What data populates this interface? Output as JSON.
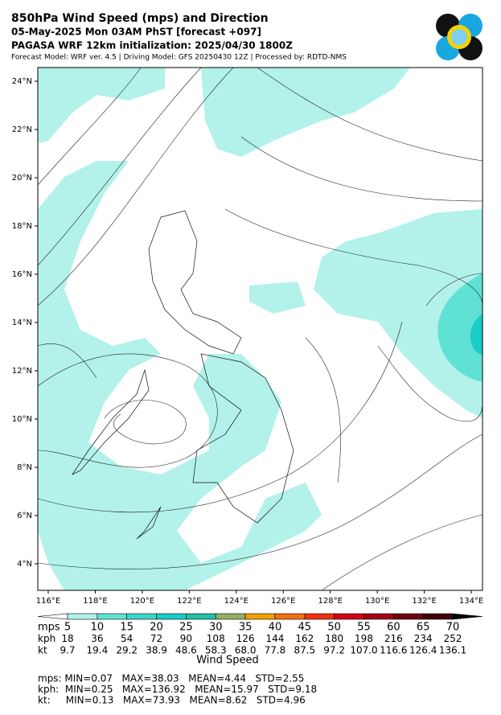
{
  "header": {
    "title": "850hPa Wind Speed (mps) and Direction",
    "subtitle": "05-May-2025 Mon 03AM PhST [forecast +097]",
    "init": "PAGASA WRF 12km initialization: 2025/04/30 1800Z",
    "credits": "Forecast Model: WRF ver. 4.5 | Driving Model: GFS 20250430 12Z | Processed by: RDTD-NMS"
  },
  "map": {
    "lat_labels": [
      "24°N",
      "22°N",
      "20°N",
      "18°N",
      "16°N",
      "14°N",
      "12°N",
      "10°N",
      "8°N",
      "6°N",
      "4°N"
    ],
    "lon_labels": [
      "116°E",
      "118°E",
      "120°E",
      "122°E",
      "124°E",
      "126°E",
      "128°E",
      "130°E",
      "132°E",
      "134°E"
    ]
  },
  "colorbar": {
    "colors": [
      "#ffffff",
      "#b2f2ea",
      "#5fe2d3",
      "#3bd8c9",
      "#1acdc8",
      "#21bfa7",
      "#93b062",
      "#f2a102",
      "#f27012",
      "#f03010",
      "#d00312",
      "#a20313",
      "#700610",
      "#400308",
      "#000000"
    ],
    "rows": [
      {
        "unit": "mps",
        "values": [
          "5",
          "10",
          "15",
          "20",
          "25",
          "30",
          "35",
          "40",
          "45",
          "50",
          "55",
          "60",
          "65",
          "70"
        ]
      },
      {
        "unit": "kph",
        "values": [
          "18",
          "36",
          "54",
          "72",
          "90",
          "108",
          "126",
          "144",
          "162",
          "180",
          "198",
          "216",
          "234",
          "252"
        ]
      },
      {
        "unit": "kt",
        "values": [
          "9.7",
          "19.4",
          "29.2",
          "38.9",
          "48.6",
          "58.3",
          "68.0",
          "77.8",
          "87.5",
          "97.2",
          "107.0",
          "116.6",
          "126.4",
          "136.1"
        ]
      }
    ],
    "label": "Wind Speed"
  },
  "stats": [
    "mps: MIN=0.07   MAX=38.03   MEAN=4.44   STD=2.55",
    "kph:  MIN=0.25   MAX=136.92   MEAN=15.97   STD=9.18",
    "kt:     MIN=0.13   MAX=73.93   MEAN=8.62   STD=4.96"
  ]
}
